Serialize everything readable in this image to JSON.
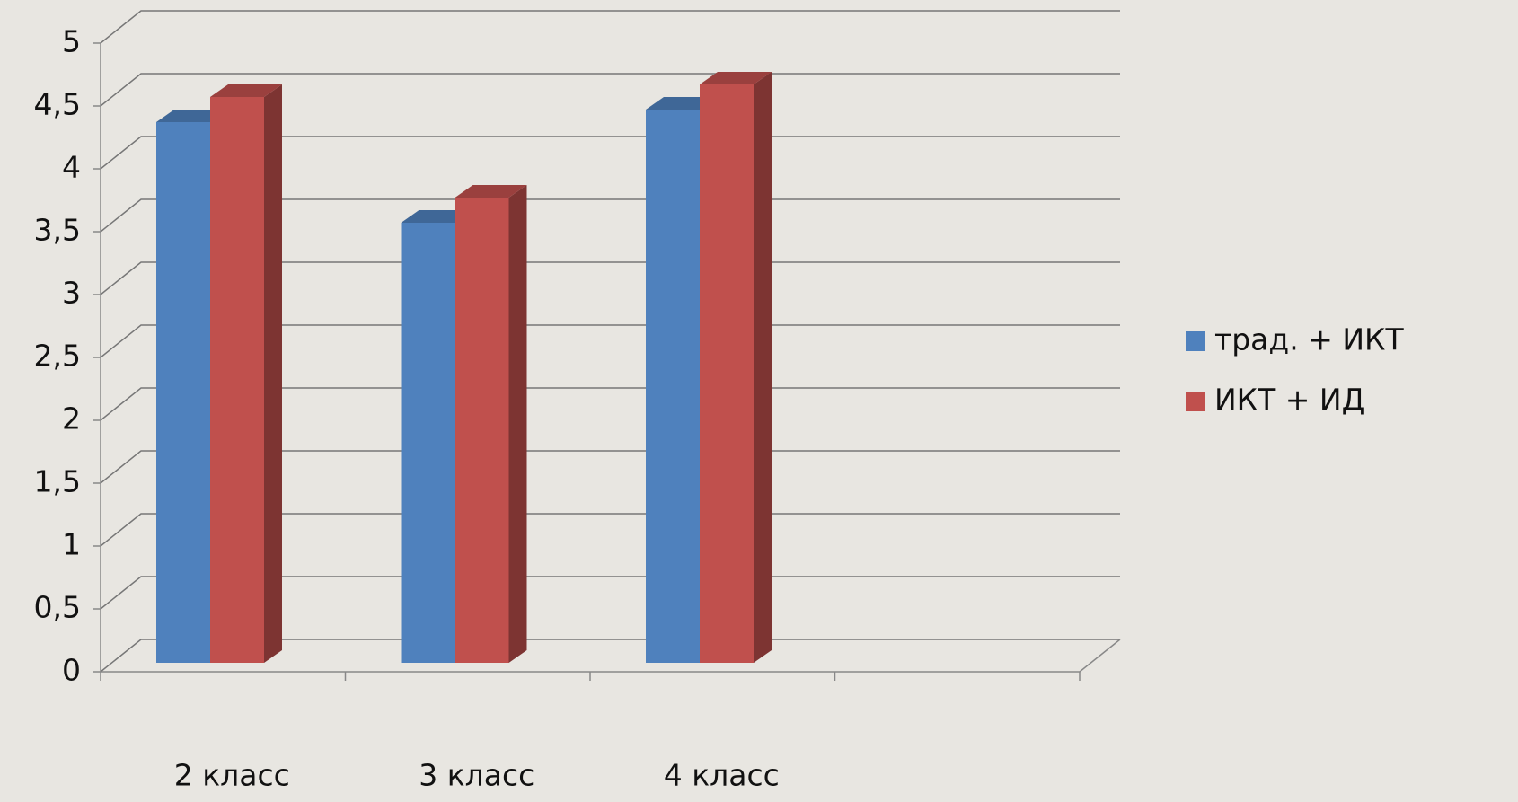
{
  "chart_data": {
    "type": "bar3d",
    "categories": [
      "2 класс",
      "3 класс",
      "4 класс",
      null
    ],
    "series": [
      {
        "name": "трад. + ИКТ",
        "color": "#4f81bd",
        "values": [
          4.3,
          3.5,
          4.4,
          null
        ]
      },
      {
        "name": "ИКТ + ИД",
        "color": "#c0504d",
        "values": [
          4.5,
          3.7,
          4.6,
          null
        ]
      }
    ],
    "ylim": [
      0,
      5
    ],
    "yticks": [
      0,
      {
        "value": 0.5,
        "label": "0,5"
      },
      1,
      {
        "value": 1.5,
        "label": "1,5"
      },
      2,
      {
        "value": 2.5,
        "label": "2,5"
      },
      3,
      {
        "value": 3.5,
        "label": "3,5"
      },
      4,
      {
        "value": 4.5,
        "label": "4,5"
      },
      5
    ],
    "grid": true,
    "legend": "right"
  }
}
